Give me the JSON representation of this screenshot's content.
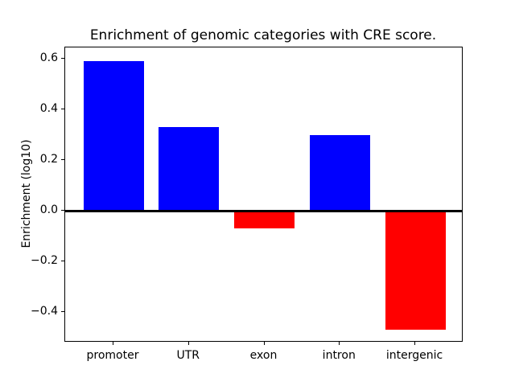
{
  "chart_data": {
    "type": "bar",
    "title": "Enrichment of genomic categories with CRE score.",
    "xlabel": "",
    "ylabel": "Enrichment (log10)",
    "categories": [
      "promoter",
      "UTR",
      "exon",
      "intron",
      "intergenic"
    ],
    "values": [
      0.59,
      0.33,
      -0.07,
      0.3,
      -0.47
    ],
    "bar_colors": [
      "#0000ff",
      "#0000ff",
      "#ff0000",
      "#0000ff",
      "#ff0000"
    ],
    "positive_color": "#0000ff",
    "negative_color": "#ff0000",
    "yticks": [
      0.6,
      0.4,
      0.2,
      0.0,
      -0.2,
      -0.4
    ],
    "ylim": [
      -0.52,
      0.645
    ],
    "xlim": [
      -0.64,
      4.64
    ],
    "bar_width_fraction": 0.8,
    "zero_line": true,
    "grid": false,
    "legend": null,
    "background_color": "#ffffff",
    "spine_color": "#000000"
  }
}
